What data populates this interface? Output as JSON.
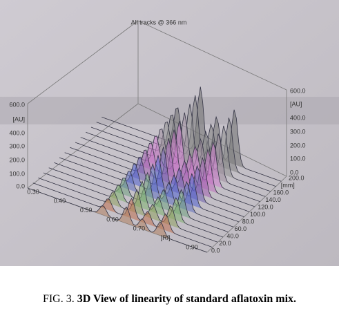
{
  "figure": {
    "plot_title": "All tracks @ 366 nm",
    "left_axis": [
      "600.0",
      "[AU]",
      "400.0",
      "300.0",
      "200.0",
      "100.0",
      "0.0"
    ],
    "right_axis": [
      "600.0",
      "[AU]",
      "400.0",
      "300.0",
      "200.0",
      "100.0",
      "0.0"
    ],
    "rf_axis": [
      "0.30",
      "0.40",
      "0.50",
      "0.60",
      "0.70",
      "[Rf]",
      "0.90"
    ],
    "depth_axis": [
      "200.0",
      "[mm]",
      "160.0",
      "140.0",
      "120.0",
      "100.0",
      "80.0",
      "60.0",
      "40.0",
      "20.0",
      "0.0"
    ]
  },
  "caption": {
    "label": "FIG. 3.",
    "text": "3D View of linearity of standard aflatoxin mix."
  }
}
